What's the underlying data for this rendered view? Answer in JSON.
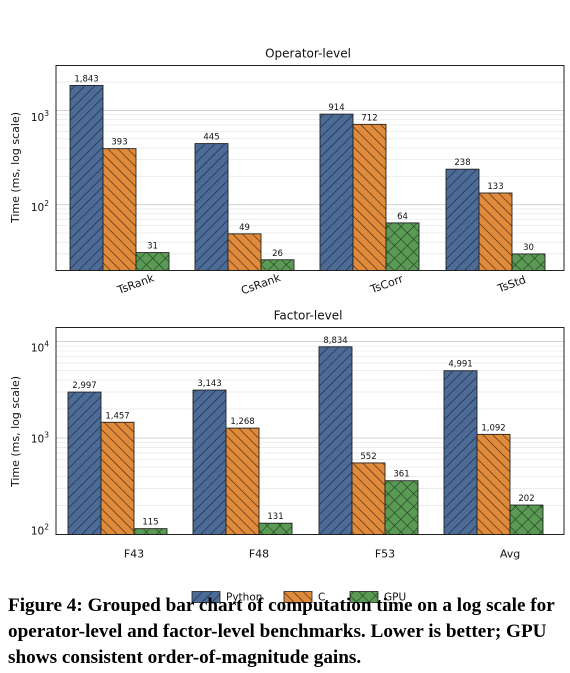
{
  "chart_data": [
    {
      "type": "bar",
      "title": "Operator-level",
      "ylabel": "Time (ms, log scale)",
      "yscale": "log",
      "ylim": [
        20,
        3000
      ],
      "yticks": [
        "10^2",
        "10^3"
      ],
      "categories": [
        "TsRank",
        "CsRank",
        "TsCorr",
        "TsStd"
      ],
      "series": [
        {
          "name": "Python",
          "values": [
            1843,
            445,
            914,
            238
          ],
          "labels": [
            "1,843",
            "445",
            "914",
            "238"
          ]
        },
        {
          "name": "C",
          "values": [
            393,
            49,
            712,
            133
          ],
          "labels": [
            "393",
            "49",
            "712",
            "133"
          ]
        },
        {
          "name": "GPU",
          "values": [
            31,
            26,
            64,
            30
          ],
          "labels": [
            "31",
            "26",
            "64",
            "30"
          ]
        }
      ]
    },
    {
      "type": "bar",
      "title": "Factor-level",
      "ylabel": "Time (ms, log scale)",
      "yscale": "log",
      "ylim": [
        100,
        14000
      ],
      "yticks": [
        "10^2",
        "10^3",
        "10^4"
      ],
      "categories": [
        "F43",
        "F48",
        "F53",
        "Avg"
      ],
      "series": [
        {
          "name": "Python",
          "values": [
            2997,
            3143,
            8834,
            4991
          ],
          "labels": [
            "2,997",
            "3,143",
            "8,834",
            "4,991"
          ]
        },
        {
          "name": "C",
          "values": [
            1457,
            1268,
            552,
            1092
          ],
          "labels": [
            "1,457",
            "1,268",
            "552",
            "1,092"
          ]
        },
        {
          "name": "GPU",
          "values": [
            115,
            131,
            361,
            202
          ],
          "labels": [
            "115",
            "131",
            "361",
            "202"
          ]
        }
      ]
    }
  ],
  "legend": {
    "position": "bottom-center",
    "items": [
      {
        "name": "Python",
        "color": "#4c6b96",
        "hatch": "diagonal"
      },
      {
        "name": "C",
        "color": "#e08a3c",
        "hatch": "back-diagonal"
      },
      {
        "name": "GPU",
        "color": "#5a9a55",
        "hatch": "cross"
      }
    ]
  },
  "colors": {
    "python": "#4c6b96",
    "c": "#e08a3c",
    "gpu": "#5a9a55",
    "grid": "#dddddd"
  },
  "caption": "Figure 4: Grouped bar chart of computation time on a log scale for operator-level and factor-level benchmarks. Lower is better; GPU shows consistent order-of-magnitude gains."
}
